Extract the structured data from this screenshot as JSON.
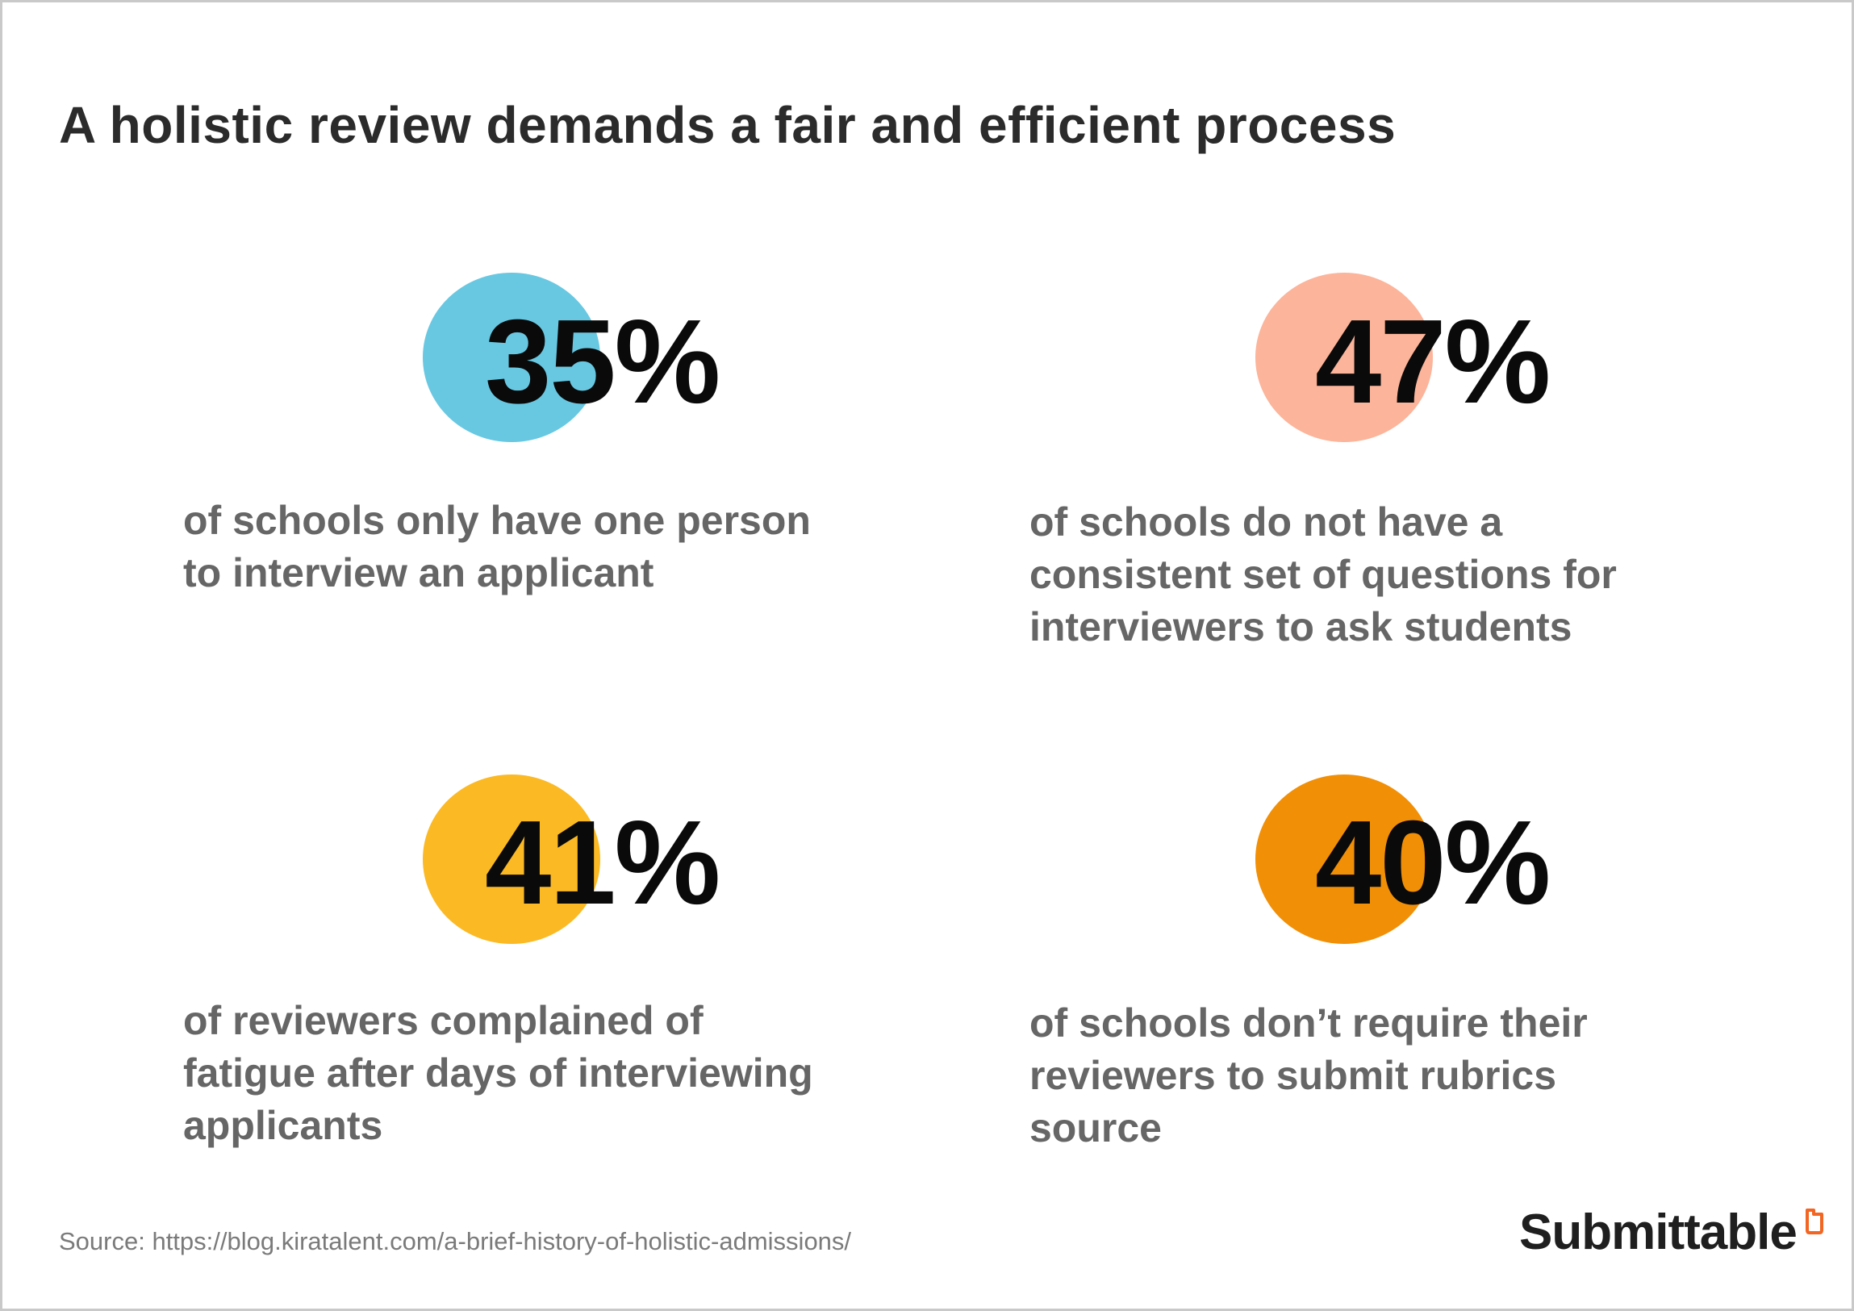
{
  "title": "A holistic review demands a fair and efficient process",
  "colors": {
    "blue": "#68c8e2",
    "peach": "#fcb49a",
    "yellow": "#fbb924",
    "orange": "#f18f06",
    "brand_accent": "#f26522"
  },
  "stats": [
    {
      "value": "35%",
      "description": "of schools only have one person\nto interview an applicant",
      "color_key": "blue"
    },
    {
      "value": "47%",
      "description": "of schools do not have a\nconsistent set of questions for\ninterviewers to ask students",
      "color_key": "peach"
    },
    {
      "value": "41%",
      "description": "of reviewers complained of\nfatigue after days of interviewing\napplicants",
      "color_key": "yellow"
    },
    {
      "value": "40%",
      "description": "of schools don’t require their\nreviewers to submit rubrics\nsource",
      "color_key": "orange"
    }
  ],
  "source": "Source: https://blog.kiratalent.com/a-brief-history-of-holistic-admissions/",
  "brand": {
    "name": "Submittable",
    "icon": "submittable-logo-icon"
  }
}
